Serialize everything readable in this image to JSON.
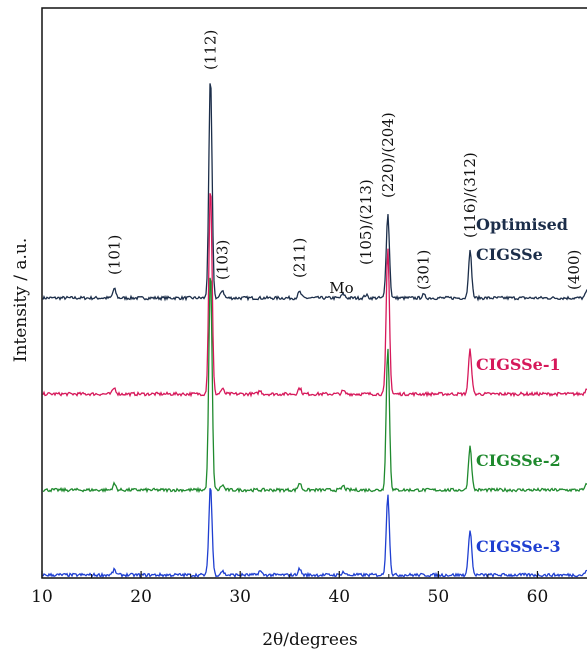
{
  "chart_data": {
    "type": "line",
    "title": "",
    "xlabel": "2θ/degrees",
    "ylabel": "Intensity / a.u.",
    "xlim": [
      10,
      65
    ],
    "x_ticks": [
      10,
      20,
      30,
      40,
      50,
      60
    ],
    "y_scale": "arbitrary units, vertically offset traces",
    "grid": false,
    "legend": "labels placed at right end of each trace",
    "peak_labels": [
      {
        "text": "(101)",
        "x": 17.3
      },
      {
        "text": "(112)",
        "x": 27.0
      },
      {
        "text": "(103)",
        "x": 28.2
      },
      {
        "text": "(211)",
        "x": 36.0
      },
      {
        "text": "(105)/(213)",
        "x": 42.7
      },
      {
        "text": "(220)/(204)",
        "x": 44.9
      },
      {
        "text": "(301)",
        "x": 48.5
      },
      {
        "text": "(116)/(312)",
        "x": 53.2
      },
      {
        "text": "(400)",
        "x": 65.0
      }
    ],
    "annotations": [
      {
        "text": "Mo",
        "x": 40.4
      }
    ],
    "series": [
      {
        "name": "Optimised CIGSSe",
        "label_lines": [
          "Optimised",
          "CIGSSe"
        ],
        "color": "#1c2e4a",
        "peaks": [
          {
            "x": 17.3,
            "y": 9
          },
          {
            "x": 27.0,
            "y": 222
          },
          {
            "x": 28.2,
            "y": 8
          },
          {
            "x": 36.0,
            "y": 6
          },
          {
            "x": 40.4,
            "y": 4
          },
          {
            "x": 42.7,
            "y": 3
          },
          {
            "x": 44.9,
            "y": 84
          },
          {
            "x": 48.5,
            "y": 3
          },
          {
            "x": 53.2,
            "y": 47
          },
          {
            "x": 65.0,
            "y": 7
          }
        ]
      },
      {
        "name": "CIGSSe-1",
        "color": "#d6185a",
        "peaks": [
          {
            "x": 17.3,
            "y": 6
          },
          {
            "x": 27.0,
            "y": 210
          },
          {
            "x": 28.2,
            "y": 5
          },
          {
            "x": 32.0,
            "y": 3
          },
          {
            "x": 36.0,
            "y": 6
          },
          {
            "x": 40.4,
            "y": 3
          },
          {
            "x": 44.9,
            "y": 146
          },
          {
            "x": 53.2,
            "y": 44
          },
          {
            "x": 65.0,
            "y": 6
          }
        ]
      },
      {
        "name": "CIGSSe-2",
        "color": "#1f8a2e",
        "peaks": [
          {
            "x": 17.3,
            "y": 6
          },
          {
            "x": 27.0,
            "y": 220
          },
          {
            "x": 28.2,
            "y": 5
          },
          {
            "x": 36.0,
            "y": 7
          },
          {
            "x": 40.4,
            "y": 4
          },
          {
            "x": 44.9,
            "y": 143
          },
          {
            "x": 53.2,
            "y": 44
          },
          {
            "x": 65.0,
            "y": 6
          }
        ]
      },
      {
        "name": "CIGSSe-3",
        "color": "#1f3fd1",
        "peaks": [
          {
            "x": 17.3,
            "y": 5
          },
          {
            "x": 27.0,
            "y": 90
          },
          {
            "x": 28.2,
            "y": 4
          },
          {
            "x": 32.0,
            "y": 4
          },
          {
            "x": 36.0,
            "y": 6
          },
          {
            "x": 40.4,
            "y": 3
          },
          {
            "x": 44.9,
            "y": 80
          },
          {
            "x": 53.2,
            "y": 46
          },
          {
            "x": 65.0,
            "y": 5
          }
        ]
      }
    ]
  }
}
